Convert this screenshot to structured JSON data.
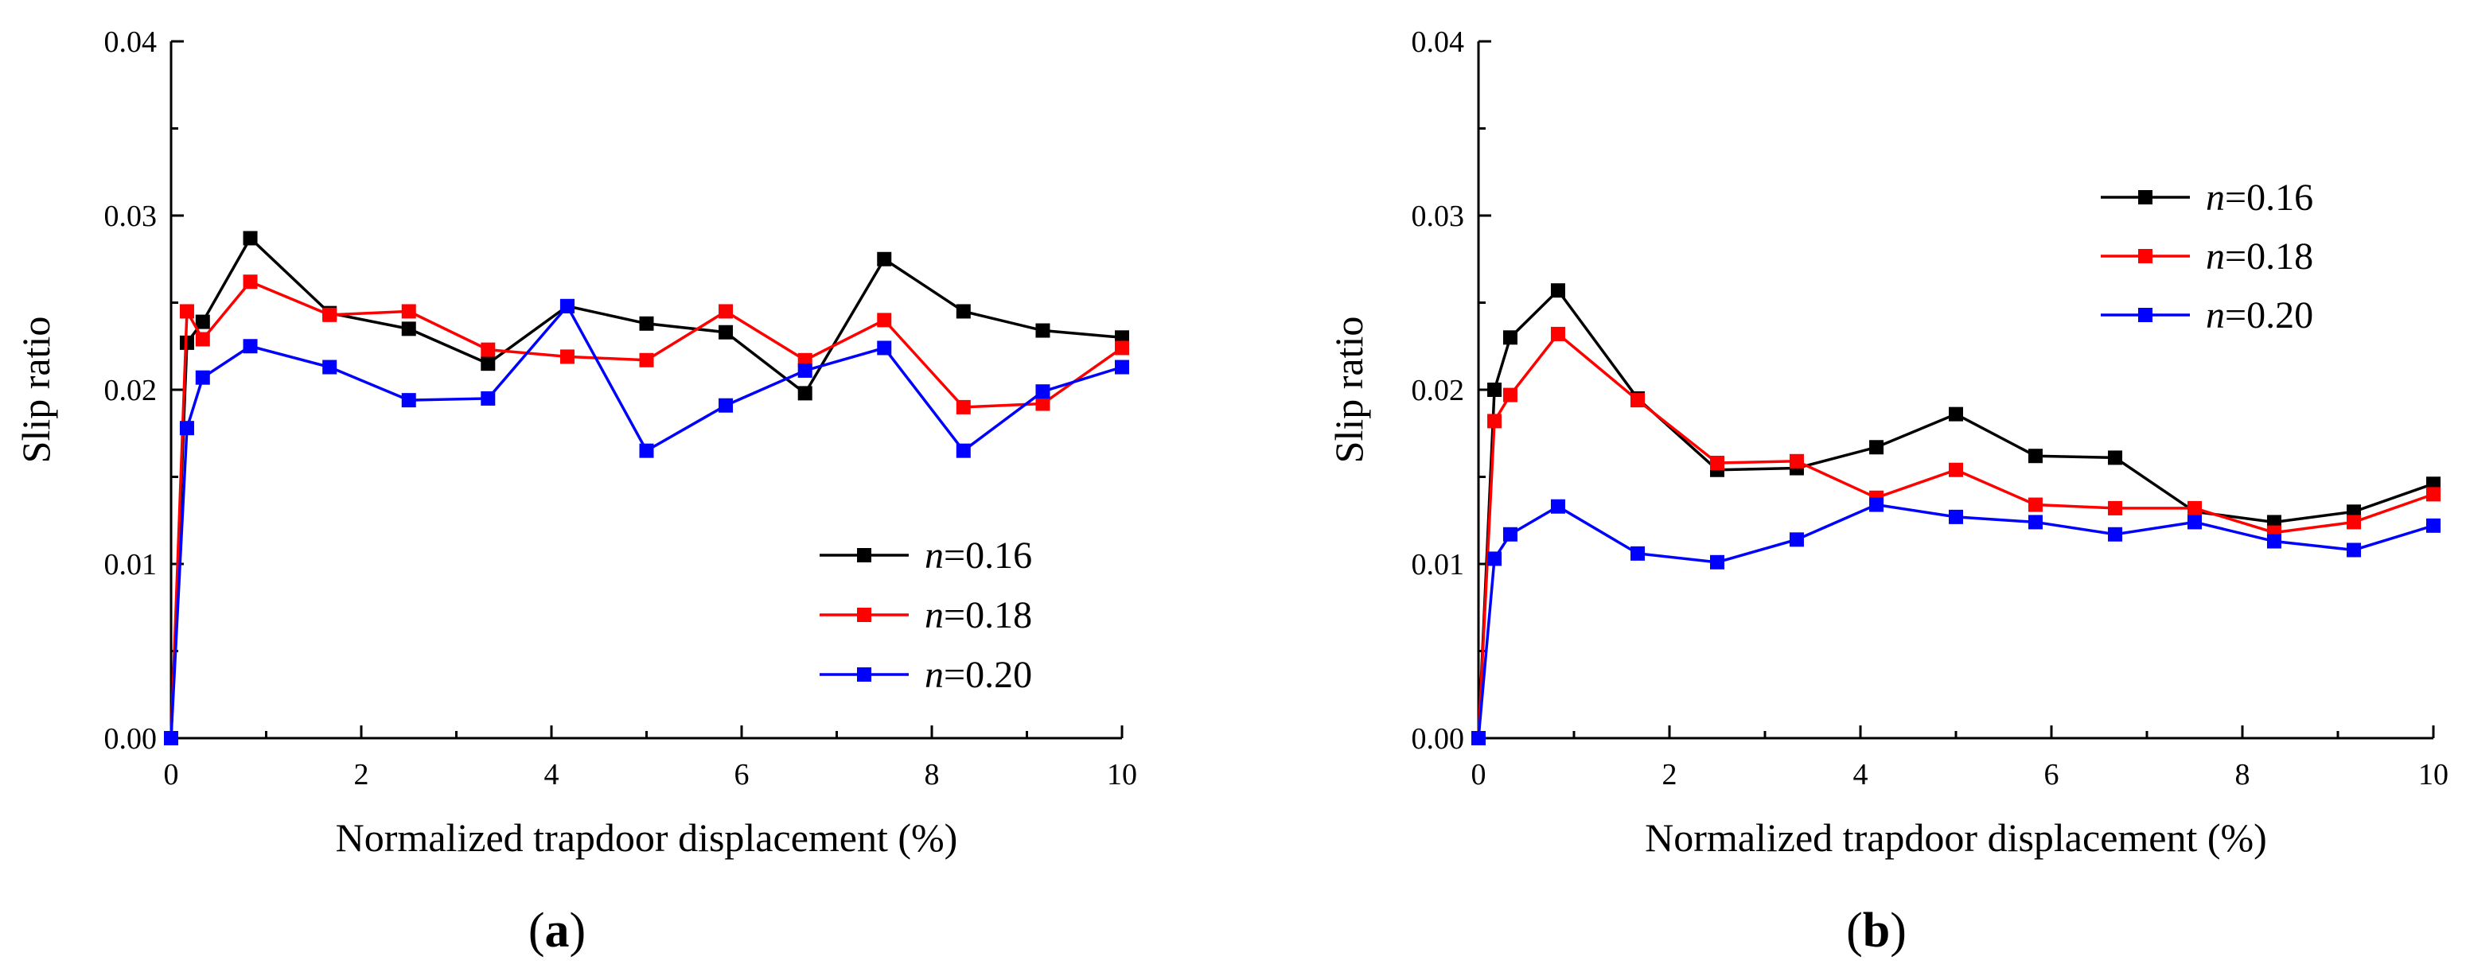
{
  "chart_data": [
    {
      "type": "line",
      "panel_label": "(a)",
      "panel_letter": "a",
      "xlabel": "Normalized trapdoor displacement (%)",
      "ylabel": "Slip ratio",
      "xlim": [
        0,
        10
      ],
      "ylim": [
        0,
        0.04
      ],
      "xticks": [
        "0",
        "2",
        "4",
        "6",
        "8",
        "10"
      ],
      "yticks": [
        "0.00",
        "0.01",
        "0.02",
        "0.03",
        "0.04"
      ],
      "grid": false,
      "legend_position": "bottom-right",
      "x": [
        0,
        0.167,
        0.333,
        0.833,
        1.667,
        2.5,
        3.333,
        4.167,
        5.0,
        5.833,
        6.667,
        7.5,
        8.333,
        9.167,
        10.0
      ],
      "series": [
        {
          "name": "n=0.16",
          "name_italic": "n",
          "name_rest": "=0.16",
          "color": "#000000",
          "values": [
            0,
            0.0227,
            0.0239,
            0.0287,
            0.0244,
            0.0235,
            0.0215,
            0.0248,
            0.0238,
            0.0233,
            0.0198,
            0.0275,
            0.0245,
            0.0234,
            0.023
          ]
        },
        {
          "name": "n=0.18",
          "name_italic": "n",
          "name_rest": "=0.18",
          "color": "#ff0000",
          "values": [
            0,
            0.0245,
            0.0229,
            0.0262,
            0.0243,
            0.0245,
            0.0223,
            0.0219,
            0.0217,
            0.0245,
            0.0217,
            0.024,
            0.019,
            0.0192,
            0.0224
          ]
        },
        {
          "name": "n=0.20",
          "name_italic": "n",
          "name_rest": "=0.20",
          "color": "#0000ff",
          "values": [
            0,
            0.0178,
            0.0207,
            0.0225,
            0.0213,
            0.0194,
            0.0195,
            0.0248,
            0.0165,
            0.0191,
            0.0211,
            0.0224,
            0.0165,
            0.0199,
            0.0213
          ]
        }
      ]
    },
    {
      "type": "line",
      "panel_label": "(b)",
      "panel_letter": "b",
      "xlabel": "Normalized trapdoor displacement (%)",
      "ylabel": "Slip ratio",
      "xlim": [
        0,
        10
      ],
      "ylim": [
        0,
        0.04
      ],
      "xticks": [
        "0",
        "2",
        "4",
        "6",
        "8",
        "10"
      ],
      "yticks": [
        "0.00",
        "0.01",
        "0.02",
        "0.03",
        "0.04"
      ],
      "grid": false,
      "legend_position": "top-right",
      "x": [
        0,
        0.167,
        0.333,
        0.833,
        1.667,
        2.5,
        3.333,
        4.167,
        5.0,
        5.833,
        6.667,
        7.5,
        8.333,
        9.167,
        10.0
      ],
      "series": [
        {
          "name": "n=0.16",
          "name_italic": "n",
          "name_rest": "=0.16",
          "color": "#000000",
          "values": [
            0,
            0.02,
            0.023,
            0.0257,
            0.0195,
            0.0154,
            0.0155,
            0.0167,
            0.0186,
            0.0162,
            0.0161,
            0.013,
            0.0124,
            0.013,
            0.0146
          ]
        },
        {
          "name": "n=0.18",
          "name_italic": "n",
          "name_rest": "=0.18",
          "color": "#ff0000",
          "values": [
            0,
            0.0182,
            0.0197,
            0.0232,
            0.0194,
            0.0158,
            0.0159,
            0.0138,
            0.0154,
            0.0134,
            0.0132,
            0.0132,
            0.0118,
            0.0124,
            0.014
          ]
        },
        {
          "name": "n=0.20",
          "name_italic": "n",
          "name_rest": "=0.20",
          "color": "#0000ff",
          "values": [
            0,
            0.0103,
            0.0117,
            0.0133,
            0.0106,
            0.0101,
            0.0114,
            0.0134,
            0.0127,
            0.0124,
            0.0117,
            0.0124,
            0.0113,
            0.0108,
            0.0122
          ]
        }
      ]
    }
  ]
}
